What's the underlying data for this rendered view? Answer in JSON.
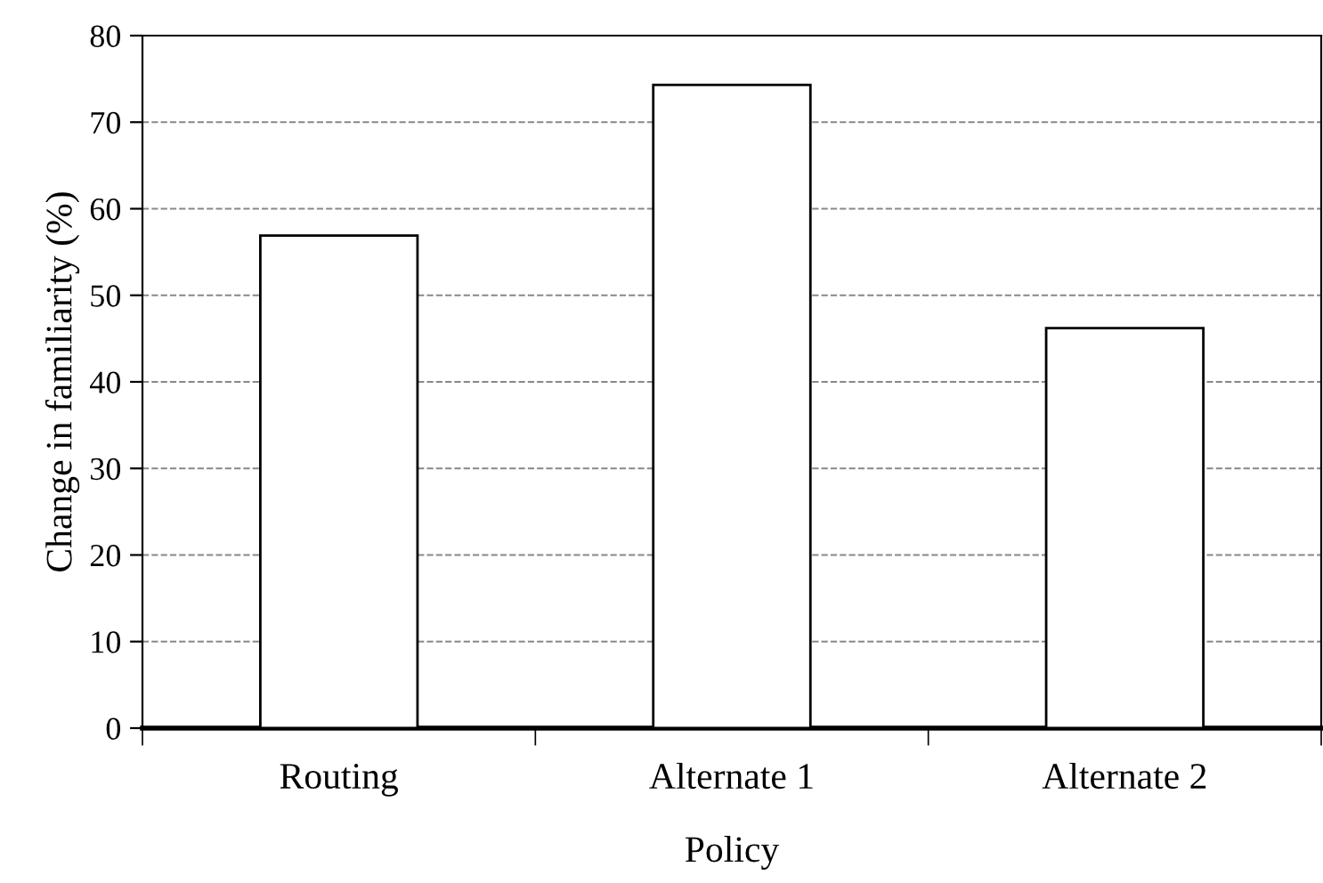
{
  "chart_data": {
    "type": "bar",
    "xlabel": "Policy",
    "ylabel": "Change in familiarity (%)",
    "categories": [
      "Routing",
      "Alternate 1",
      "Alternate 2"
    ],
    "values": [
      56.9,
      74.3,
      46.2
    ],
    "color": "#ffffff",
    "ylim": [
      0,
      80
    ],
    "yticks": [
      0,
      10,
      20,
      30,
      40,
      50,
      60,
      70,
      80
    ],
    "grid": "y"
  }
}
